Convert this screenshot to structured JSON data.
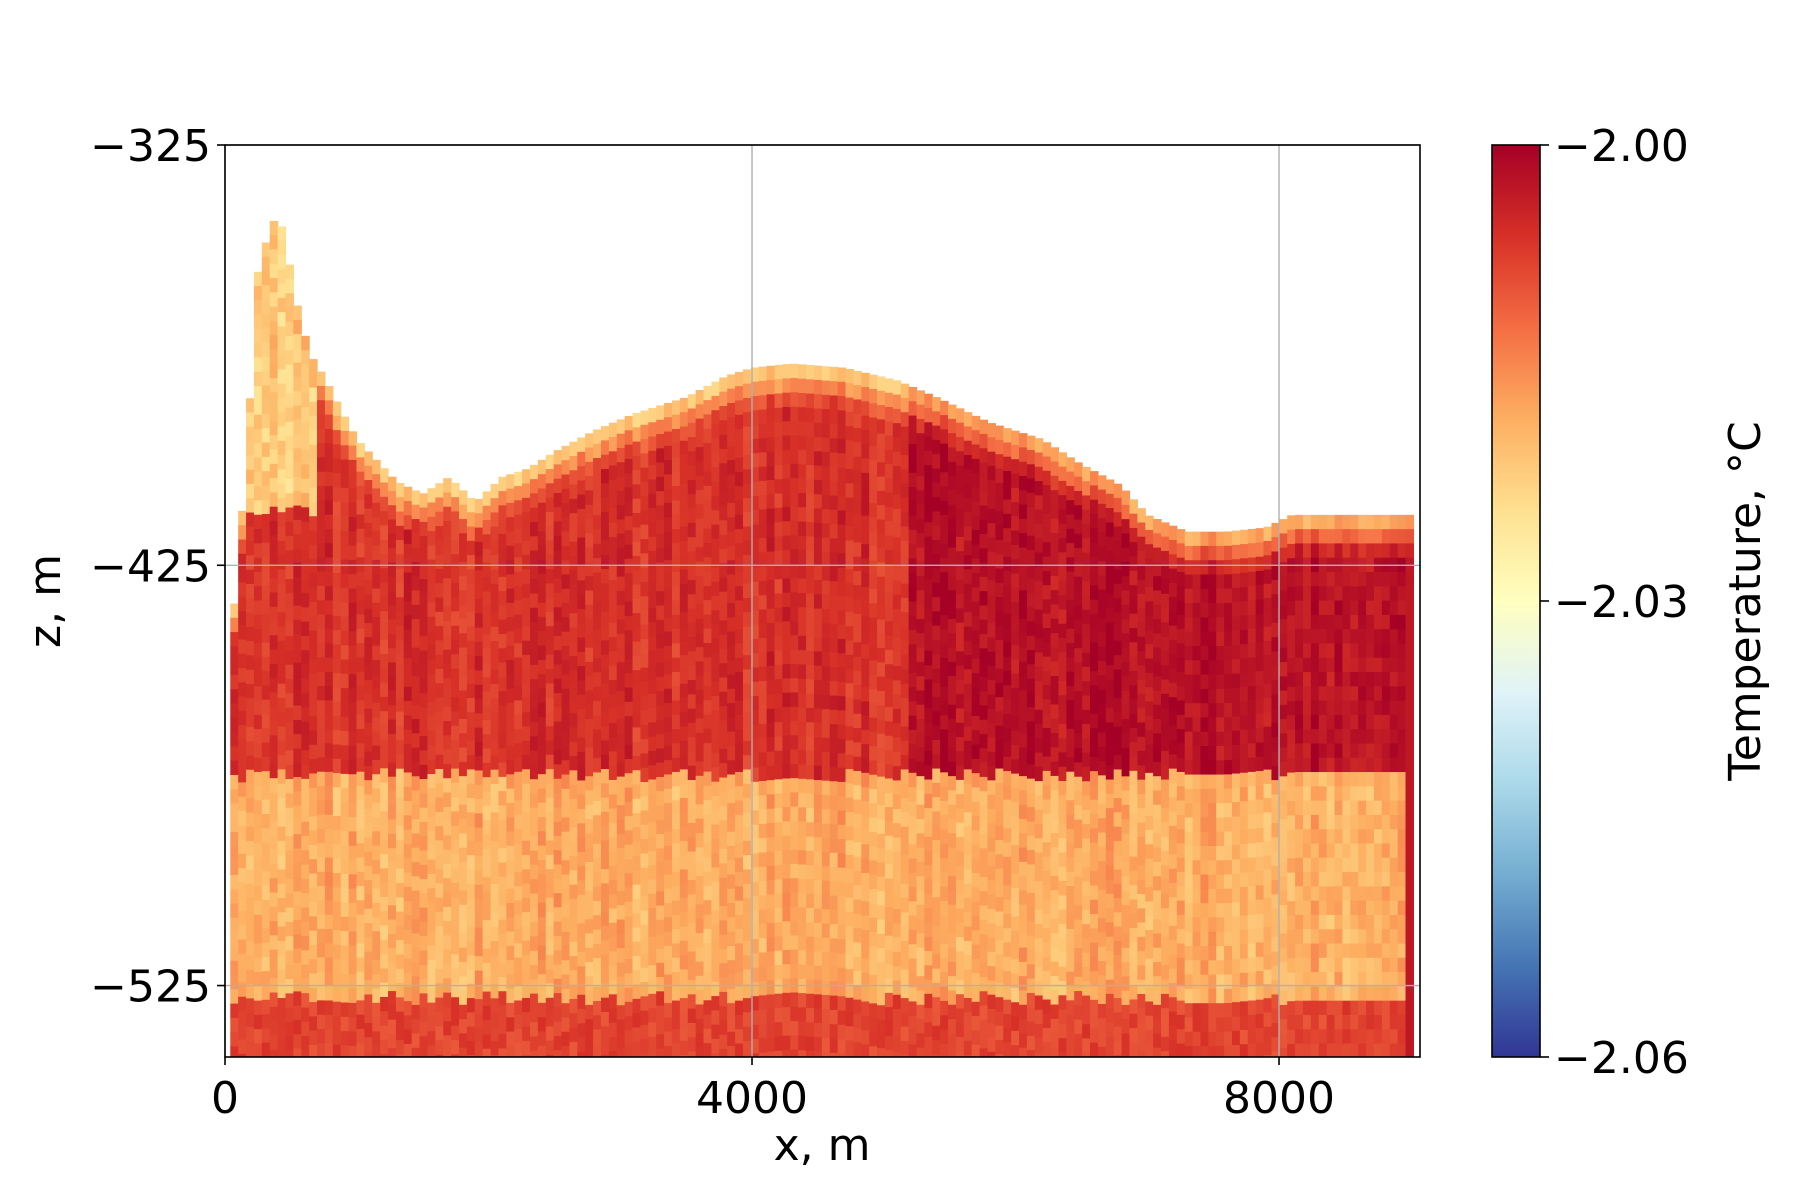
{
  "chart_data": {
    "type": "heatmap",
    "title": "",
    "xlabel": "x, m",
    "ylabel": "z, m",
    "xlim": [
      0,
      9070
    ],
    "ylim": [
      -542,
      -325
    ],
    "x_ticks": [
      {
        "value": 0,
        "label": "0"
      },
      {
        "value": 4000,
        "label": "4000"
      },
      {
        "value": 8000,
        "label": "8000"
      }
    ],
    "y_ticks": [
      {
        "value": -325,
        "label": "−325"
      },
      {
        "value": -425,
        "label": "−425"
      },
      {
        "value": -525,
        "label": "−525"
      }
    ],
    "grid": true,
    "colormap": "RdYlBu_r",
    "colormap_stops": [
      "#313695",
      "#4575b4",
      "#74add1",
      "#abd9e9",
      "#e0f3f8",
      "#ffffbf",
      "#fee090",
      "#fdae61",
      "#f46d43",
      "#d73027",
      "#a50026"
    ],
    "colorbar": {
      "label": "Temperature, °C",
      "vmin": -2.06,
      "vmax": -2.0,
      "ticks": [
        {
          "value": -2.0,
          "label": "−2.00"
        },
        {
          "value": -2.03,
          "label": "−2.03"
        },
        {
          "value": -2.06,
          "label": "−2.06"
        }
      ]
    },
    "bottom_z": -542,
    "upper_surface": [
      {
        "x": 40,
        "z": -477
      },
      {
        "x": 70,
        "z": -434
      },
      {
        "x": 120,
        "z": -415
      },
      {
        "x": 170,
        "z": -400
      },
      {
        "x": 210,
        "z": -370
      },
      {
        "x": 250,
        "z": -355
      },
      {
        "x": 300,
        "z": -349
      },
      {
        "x": 370,
        "z": -343
      },
      {
        "x": 420,
        "z": -343
      },
      {
        "x": 480,
        "z": -352
      },
      {
        "x": 560,
        "z": -365
      },
      {
        "x": 650,
        "z": -375
      },
      {
        "x": 750,
        "z": -380
      },
      {
        "x": 880,
        "z": -388
      },
      {
        "x": 1000,
        "z": -395
      },
      {
        "x": 1150,
        "z": -400
      },
      {
        "x": 1300,
        "z": -405
      },
      {
        "x": 1500,
        "z": -408
      },
      {
        "x": 1700,
        "z": -404
      },
      {
        "x": 1900,
        "z": -410
      },
      {
        "x": 2100,
        "z": -404
      },
      {
        "x": 2300,
        "z": -402
      },
      {
        "x": 2500,
        "z": -398
      },
      {
        "x": 2800,
        "z": -393
      },
      {
        "x": 3100,
        "z": -389
      },
      {
        "x": 3500,
        "z": -385
      },
      {
        "x": 3800,
        "z": -380
      },
      {
        "x": 4000,
        "z": -378
      },
      {
        "x": 4300,
        "z": -377
      },
      {
        "x": 4700,
        "z": -378
      },
      {
        "x": 5100,
        "z": -381
      },
      {
        "x": 5400,
        "z": -385
      },
      {
        "x": 5800,
        "z": -391
      },
      {
        "x": 6200,
        "z": -395
      },
      {
        "x": 6500,
        "z": -401
      },
      {
        "x": 6800,
        "z": -406
      },
      {
        "x": 7000,
        "z": -413
      },
      {
        "x": 7300,
        "z": -417
      },
      {
        "x": 7600,
        "z": -417
      },
      {
        "x": 7900,
        "z": -416
      },
      {
        "x": 8100,
        "z": -413
      },
      {
        "x": 8500,
        "z": -413
      },
      {
        "x": 8900,
        "z": -413
      },
      {
        "x": 9020,
        "z": -413
      }
    ],
    "cold_lens_base": [
      {
        "x": 1100,
        "z": -410
      },
      {
        "x": 2000,
        "z": -413
      },
      {
        "x": 3000,
        "z": -414
      },
      {
        "x": 4500,
        "z": -415
      },
      {
        "x": 6000,
        "z": -417
      },
      {
        "x": 7000,
        "z": -419
      },
      {
        "x": 8000,
        "z": -419
      },
      {
        "x": 8600,
        "z": -417
      }
    ],
    "layers": [
      {
        "z_top": -410,
        "z_bottom": -475,
        "value": -2.006
      },
      {
        "z_top": -475,
        "z_bottom": -542,
        "value": -2.018
      }
    ]
  }
}
